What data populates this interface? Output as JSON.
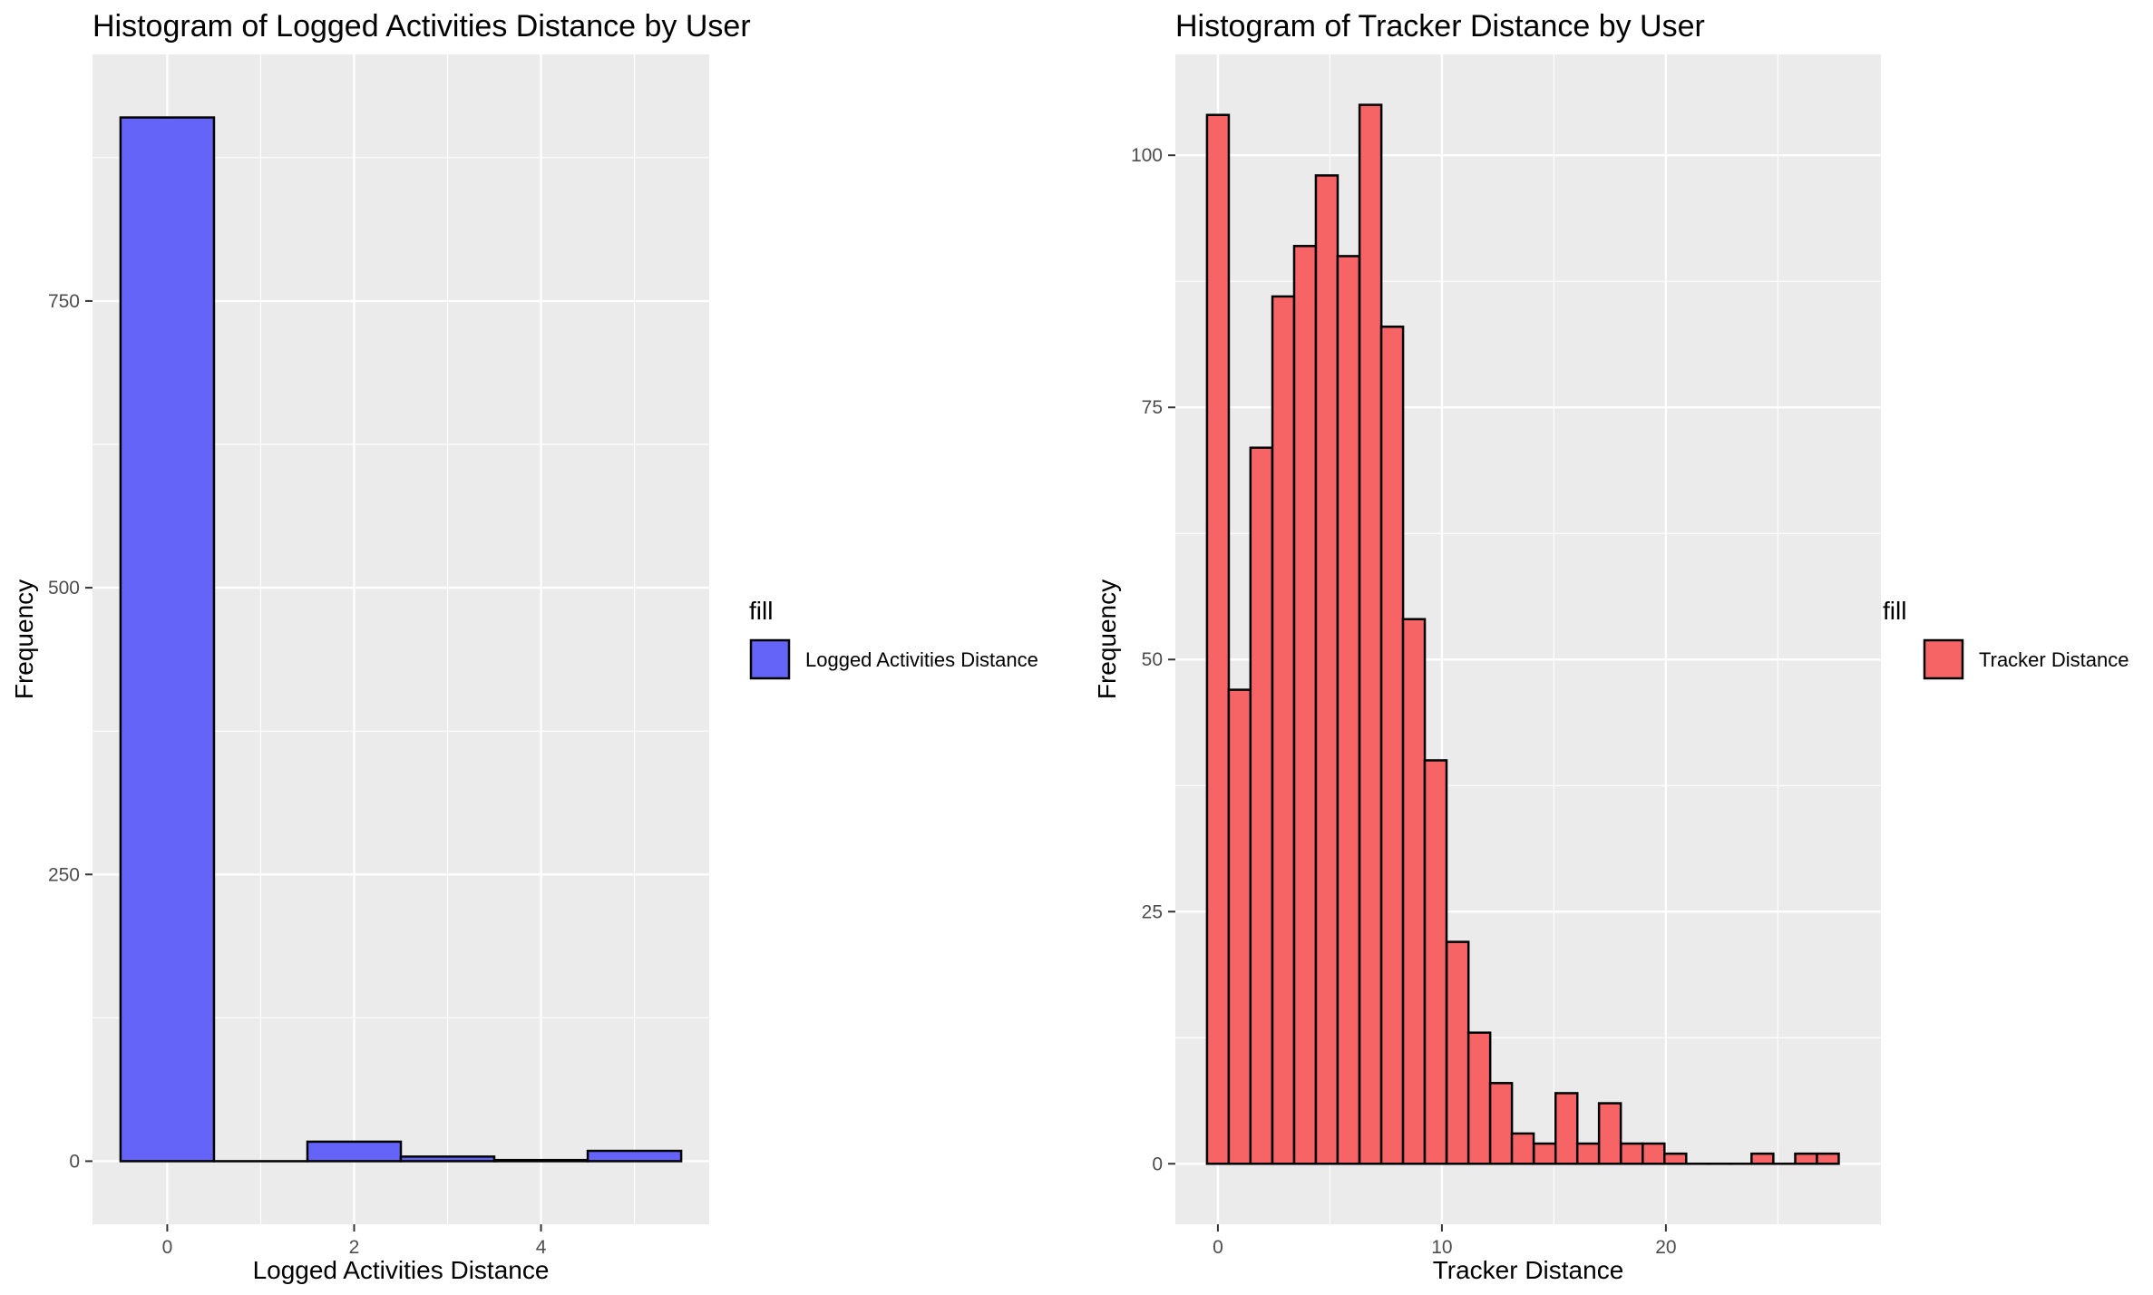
{
  "chart_data": [
    {
      "type": "bar",
      "title": "Histogram of Logged Activities Distance by User",
      "xlabel": "Logged Activities Distance",
      "ylabel": "Frequency",
      "bin_width": 1,
      "x": [
        0,
        1,
        2,
        3,
        4,
        5
      ],
      "values": [
        910,
        0,
        17,
        4,
        1,
        9
      ],
      "xlim": [
        -0.8,
        5.8
      ],
      "ylim": [
        -55,
        965
      ],
      "xticks": [
        0,
        2,
        4
      ],
      "yticks": [
        0,
        250,
        500,
        750
      ],
      "legend": {
        "title": "fill",
        "label": "Logged Activities Distance",
        "position": "right"
      },
      "fill_color": "#6464f8",
      "grid": true
    },
    {
      "type": "bar",
      "title": "Histogram of Tracker Distance by User",
      "xlabel": "Tracker Distance",
      "ylabel": "Frequency",
      "bin_width": 0.9724,
      "x": [
        0,
        0.97,
        1.94,
        2.92,
        3.89,
        4.86,
        5.83,
        6.81,
        7.78,
        8.75,
        9.72,
        10.7,
        11.67,
        12.64,
        13.61,
        14.59,
        15.56,
        16.53,
        17.5,
        18.48,
        19.45,
        20.42,
        21.39,
        22.37,
        23.34,
        24.31,
        25.28,
        26.26,
        27.23
      ],
      "values": [
        104,
        47,
        71,
        86,
        91,
        98,
        90,
        105,
        83,
        54,
        40,
        22,
        13,
        8,
        3,
        2,
        7,
        2,
        6,
        2,
        2,
        1,
        0,
        0,
        0,
        1,
        0,
        1,
        1
      ],
      "xlim": [
        -1.9,
        29.6
      ],
      "ylim": [
        -6,
        110
      ],
      "xticks": [
        0,
        10,
        20
      ],
      "yticks": [
        0,
        25,
        50,
        75,
        100
      ],
      "legend": {
        "title": "fill",
        "label": "Tracker Distance",
        "position": "right"
      },
      "fill_color": "#f76466",
      "grid": true
    }
  ]
}
